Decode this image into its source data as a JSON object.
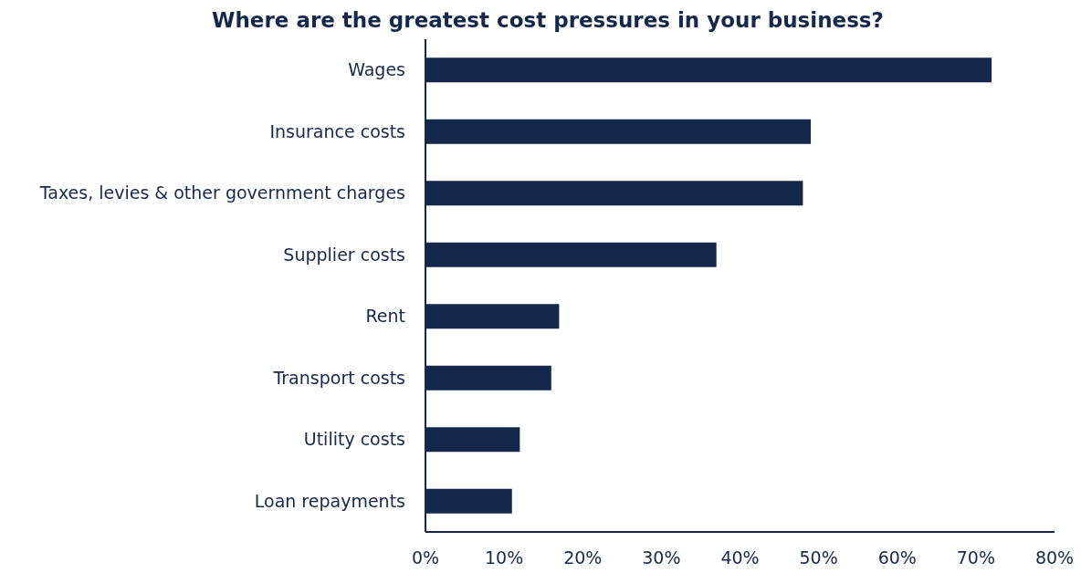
{
  "chart_data": {
    "type": "bar",
    "orientation": "horizontal",
    "title": "Where are the greatest cost pressures in your business?",
    "categories": [
      "Wages",
      "Insurance costs",
      "Taxes, levies & other government charges",
      "Supplier costs",
      "Rent",
      "Transport costs",
      "Utility costs",
      "Loan repayments"
    ],
    "values": [
      72,
      49,
      48,
      37,
      17,
      16,
      12,
      11
    ],
    "color": "#14284b",
    "xlim": [
      0,
      80
    ],
    "xticks": [
      {
        "value": 0,
        "label": "0%"
      },
      {
        "value": 10,
        "label": "10%"
      },
      {
        "value": 20,
        "label": "20%"
      },
      {
        "value": 30,
        "label": "30%"
      },
      {
        "value": 40,
        "label": "40%"
      },
      {
        "value": 50,
        "label": "50%"
      },
      {
        "value": 60,
        "label": "60%"
      },
      {
        "value": 70,
        "label": "70%"
      },
      {
        "value": 80,
        "label": "80%"
      }
    ],
    "grid": false
  }
}
